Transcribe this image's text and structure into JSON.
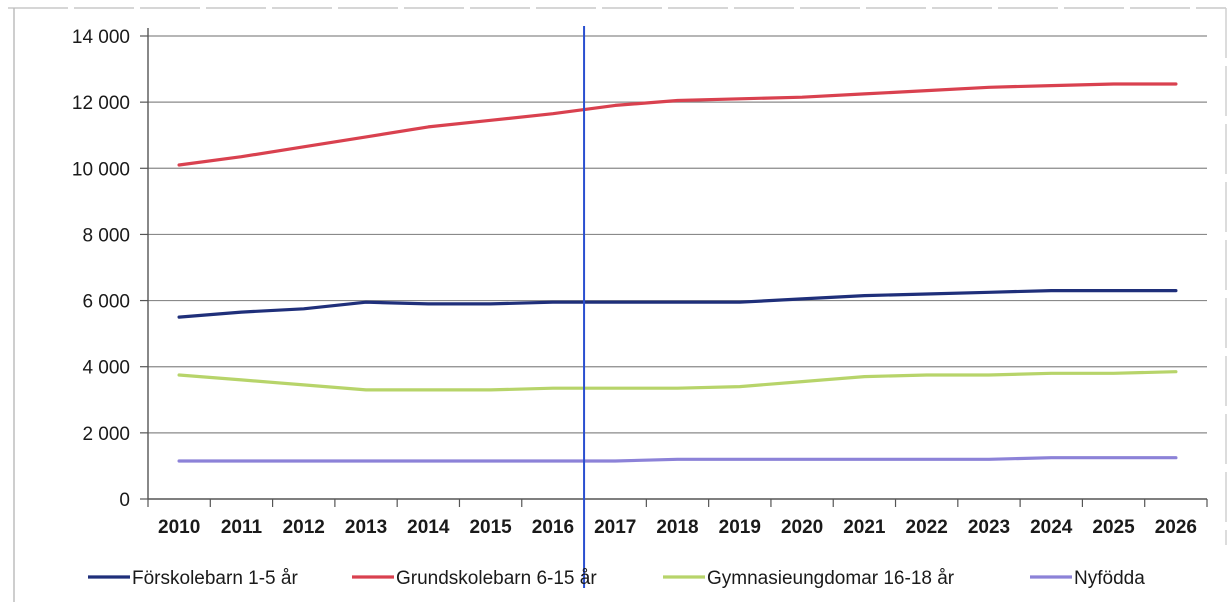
{
  "chart_data": {
    "type": "line",
    "title": "",
    "xlabel": "",
    "ylabel": "",
    "x": [
      "2010",
      "2011",
      "2012",
      "2013",
      "2014",
      "2015",
      "2016",
      "2017",
      "2018",
      "2019",
      "2020",
      "2021",
      "2022",
      "2023",
      "2024",
      "2025",
      "2026"
    ],
    "ylim": [
      0,
      14000
    ],
    "yticks": [
      0,
      2000,
      4000,
      6000,
      8000,
      10000,
      12000,
      14000
    ],
    "ytick_labels": [
      "0",
      "2 000",
      "4 000",
      "6 000",
      "8 000",
      "10 000",
      "12 000",
      "14 000"
    ],
    "grid": true,
    "legend_position": "bottom",
    "reference_line": {
      "x": "2016",
      "color": "#2a4fd0"
    },
    "series": [
      {
        "name": "Förskolebarn 1-5 år",
        "color": "#1f2f7a",
        "values": [
          5500,
          5650,
          5750,
          5950,
          5900,
          5900,
          5950,
          5950,
          5950,
          5950,
          6050,
          6150,
          6200,
          6250,
          6300,
          6300,
          6300
        ]
      },
      {
        "name": "Grundskolebarn 6-15 år",
        "color": "#d9414f",
        "values": [
          10100,
          10350,
          10650,
          10950,
          11250,
          11450,
          11650,
          11900,
          12050,
          12100,
          12150,
          12250,
          12350,
          12450,
          12500,
          12550,
          12550
        ]
      },
      {
        "name": "Gymnasieungdomar 16-18 år",
        "color": "#b7d46a",
        "values": [
          3750,
          3600,
          3450,
          3300,
          3300,
          3300,
          3350,
          3350,
          3350,
          3400,
          3550,
          3700,
          3750,
          3750,
          3800,
          3800,
          3850
        ]
      },
      {
        "name": "Nyfödda",
        "color": "#8c82d8",
        "values": [
          1150,
          1150,
          1150,
          1150,
          1150,
          1150,
          1150,
          1150,
          1200,
          1200,
          1200,
          1200,
          1200,
          1200,
          1250,
          1250,
          1250
        ]
      }
    ]
  }
}
